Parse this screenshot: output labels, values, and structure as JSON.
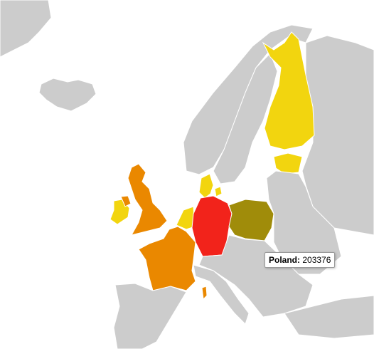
{
  "tooltip": {
    "label": "Poland:",
    "value": 203376
  }
}
